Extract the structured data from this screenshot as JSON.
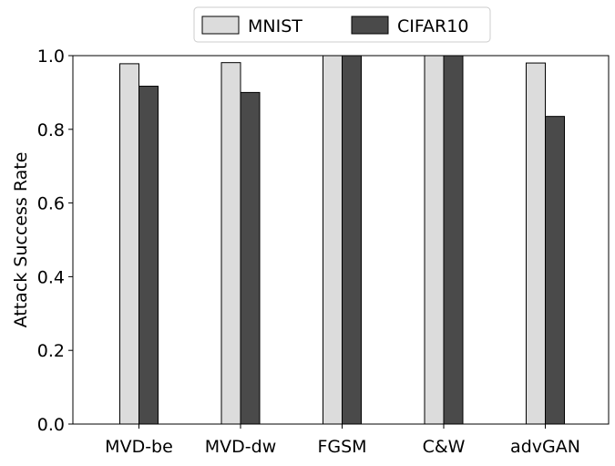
{
  "chart_data": {
    "type": "bar",
    "categories": [
      "MVD-be",
      "MVD-dw",
      "FGSM",
      "C&W",
      "advGAN"
    ],
    "series": [
      {
        "name": "MNIST",
        "values": [
          0.978,
          0.981,
          1.0,
          1.0,
          0.98
        ],
        "color": "#dcdcdc"
      },
      {
        "name": "CIFAR10",
        "values": [
          0.917,
          0.9,
          1.0,
          1.0,
          0.835
        ],
        "color": "#4a4a4a"
      }
    ],
    "xlabel": "",
    "ylabel": "Attack Success Rate",
    "ylim": [
      0,
      1.0
    ],
    "yticks": [
      "0.0",
      "0.2",
      "0.4",
      "0.6",
      "0.8",
      "1.0"
    ],
    "grid": false,
    "legend_position": "top-center"
  }
}
